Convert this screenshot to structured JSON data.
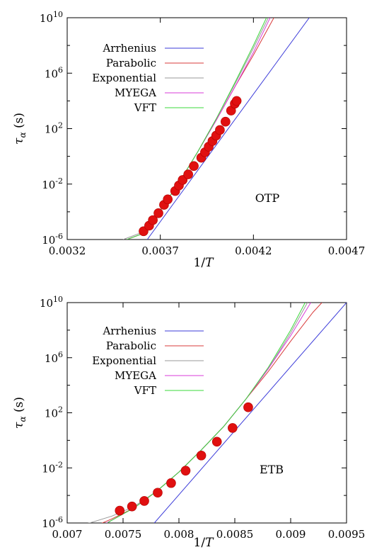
{
  "chart_data": [
    {
      "type": "line",
      "annotation": "OTP",
      "xlabel": "1/T",
      "ylabel_base": "τ",
      "ylabel_sub": "α",
      "ylabel_unit": "(s)",
      "xlim": [
        0.0032,
        0.0047
      ],
      "ylim_log10": [
        -6,
        10
      ],
      "yscale": "log",
      "xticks": [
        "0.0032",
        "0.0037",
        "0.0042",
        "0.0047"
      ],
      "xtick_values": [
        0.0032,
        0.0037,
        0.0042,
        0.0047
      ],
      "yticks": [
        {
          "base": "10",
          "exp": "10",
          "value": 10
        },
        {
          "base": "10",
          "exp": "6",
          "value": 6
        },
        {
          "base": "10",
          "exp": "2",
          "value": 2
        },
        {
          "base": "10",
          "exp": "-2",
          "value": -2
        },
        {
          "base": "10",
          "exp": "-6",
          "value": -6
        }
      ],
      "legend_position": "top-left",
      "series": [
        {
          "name": "Arrhenius",
          "color": "#3b3bd9",
          "points": [
            [
              0.00363,
              -6
            ],
            [
              0.0045,
              10
            ]
          ]
        },
        {
          "name": "Parabolic",
          "color": "#d93b3b",
          "points": [
            [
              0.00352,
              -6
            ],
            [
              0.0036,
              -5.6
            ],
            [
              0.0037,
              -3.9
            ],
            [
              0.0038,
              -1.9
            ],
            [
              0.0039,
              0.3
            ],
            [
              0.004,
              2.6
            ],
            [
              0.0041,
              5.0
            ],
            [
              0.0042,
              7.3
            ],
            [
              0.00431,
              10
            ]
          ]
        },
        {
          "name": "Exponential",
          "color": "#999999",
          "points": [
            [
              0.0035,
              -6
            ],
            [
              0.0036,
              -5.5
            ],
            [
              0.0037,
              -3.9
            ],
            [
              0.0038,
              -1.9
            ],
            [
              0.0039,
              0.3
            ],
            [
              0.004,
              2.7
            ],
            [
              0.0041,
              5.2
            ],
            [
              0.0042,
              7.8
            ],
            [
              0.00428,
              10
            ]
          ]
        },
        {
          "name": "MYEGA",
          "color": "#d93bd9",
          "points": [
            [
              0.00352,
              -6
            ],
            [
              0.0036,
              -5.6
            ],
            [
              0.0037,
              -3.9
            ],
            [
              0.0038,
              -1.9
            ],
            [
              0.0039,
              0.3
            ],
            [
              0.004,
              2.6
            ],
            [
              0.0041,
              5.0
            ],
            [
              0.0042,
              7.5
            ],
            [
              0.00429,
              10
            ]
          ]
        },
        {
          "name": "VFT",
          "color": "#3bd93b",
          "points": [
            [
              0.00352,
              -6
            ],
            [
              0.0036,
              -5.6
            ],
            [
              0.0037,
              -3.9
            ],
            [
              0.0038,
              -1.9
            ],
            [
              0.0039,
              0.3
            ],
            [
              0.004,
              2.7
            ],
            [
              0.0041,
              5.3
            ],
            [
              0.0042,
              8.0
            ],
            [
              0.00427,
              10
            ]
          ]
        }
      ],
      "data_points": {
        "color": "#e01010",
        "x": [
          0.00361,
          0.00364,
          0.00366,
          0.00369,
          0.00372,
          0.00374,
          0.00378,
          0.0038,
          0.00382,
          0.00385,
          0.00388,
          0.00392,
          0.00394,
          0.00396,
          0.00398,
          0.004,
          0.00402,
          0.00405,
          0.00408,
          0.0041,
          0.00411
        ],
        "log10_y": [
          -5.4,
          -5.0,
          -4.6,
          -4.1,
          -3.5,
          -3.1,
          -2.5,
          -2.1,
          -1.7,
          -1.3,
          -0.7,
          -0.1,
          0.3,
          0.7,
          1.1,
          1.5,
          1.9,
          2.5,
          3.3,
          3.8,
          4.0
        ]
      }
    },
    {
      "type": "line",
      "annotation": "ETB",
      "xlabel": "1/T",
      "ylabel_base": "τ",
      "ylabel_sub": "α",
      "ylabel_unit": "(s)",
      "xlim": [
        0.007,
        0.0095
      ],
      "ylim_log10": [
        -6,
        10
      ],
      "yscale": "log",
      "xticks": [
        "0.007",
        "0.0075",
        "0.008",
        "0.0085",
        "0.009",
        "0.0095"
      ],
      "xtick_values": [
        0.007,
        0.0075,
        0.008,
        0.0085,
        0.009,
        0.0095
      ],
      "yticks": [
        {
          "base": "10",
          "exp": "10",
          "value": 10
        },
        {
          "base": "10",
          "exp": "6",
          "value": 6
        },
        {
          "base": "10",
          "exp": "2",
          "value": 2
        },
        {
          "base": "10",
          "exp": "-2",
          "value": -2
        },
        {
          "base": "10",
          "exp": "-6",
          "value": -6
        }
      ],
      "legend_position": "top-left",
      "series": [
        {
          "name": "Arrhenius",
          "color": "#3b3bd9",
          "points": [
            [
              0.00778,
              -6
            ],
            [
              0.0095,
              10
            ]
          ]
        },
        {
          "name": "Parabolic",
          "color": "#d93b3b",
          "points": [
            [
              0.007,
              -6.7
            ],
            [
              0.0072,
              -6.4
            ],
            [
              0.0074,
              -5.7
            ],
            [
              0.0076,
              -4.9
            ],
            [
              0.0078,
              -3.7
            ],
            [
              0.008,
              -2.3
            ],
            [
              0.0082,
              -0.7
            ],
            [
              0.0084,
              1.0
            ],
            [
              0.0086,
              3.0
            ],
            [
              0.0088,
              5.0
            ],
            [
              0.009,
              7.2
            ],
            [
              0.0092,
              9.3
            ],
            [
              0.00928,
              10
            ]
          ]
        },
        {
          "name": "Exponential",
          "color": "#999999",
          "points": [
            [
              0.007,
              -6.3
            ],
            [
              0.0072,
              -6.0
            ],
            [
              0.0074,
              -5.5
            ],
            [
              0.0076,
              -4.8
            ],
            [
              0.0078,
              -3.7
            ],
            [
              0.008,
              -2.3
            ],
            [
              0.0082,
              -0.7
            ],
            [
              0.0084,
              1.0
            ],
            [
              0.0086,
              3.0
            ],
            [
              0.0088,
              5.2
            ],
            [
              0.009,
              7.8
            ],
            [
              0.00915,
              10
            ]
          ]
        },
        {
          "name": "MYEGA",
          "color": "#d93bd9",
          "points": [
            [
              0.00735,
              -6
            ],
            [
              0.0074,
              -5.8
            ],
            [
              0.0076,
              -4.9
            ],
            [
              0.0078,
              -3.7
            ],
            [
              0.008,
              -2.3
            ],
            [
              0.0082,
              -0.7
            ],
            [
              0.0084,
              1.0
            ],
            [
              0.0086,
              3.0
            ],
            [
              0.0088,
              5.2
            ],
            [
              0.009,
              7.6
            ],
            [
              0.00918,
              10
            ]
          ]
        },
        {
          "name": "VFT",
          "color": "#3bd93b",
          "points": [
            [
              0.00736,
              -6
            ],
            [
              0.0074,
              -5.8
            ],
            [
              0.0076,
              -4.9
            ],
            [
              0.0078,
              -3.7
            ],
            [
              0.008,
              -2.3
            ],
            [
              0.0082,
              -0.7
            ],
            [
              0.0084,
              1.0
            ],
            [
              0.0086,
              3.0
            ],
            [
              0.0088,
              5.3
            ],
            [
              0.009,
              8.0
            ],
            [
              0.00913,
              10
            ]
          ]
        }
      ],
      "data_points": {
        "color": "#e01010",
        "x": [
          0.00747,
          0.00758,
          0.00769,
          0.00781,
          0.00793,
          0.00806,
          0.0082,
          0.00834,
          0.00848,
          0.00862
        ],
        "log10_y": [
          -5.1,
          -4.8,
          -4.4,
          -3.8,
          -3.1,
          -2.2,
          -1.1,
          -0.1,
          0.9,
          2.4
        ]
      }
    }
  ]
}
